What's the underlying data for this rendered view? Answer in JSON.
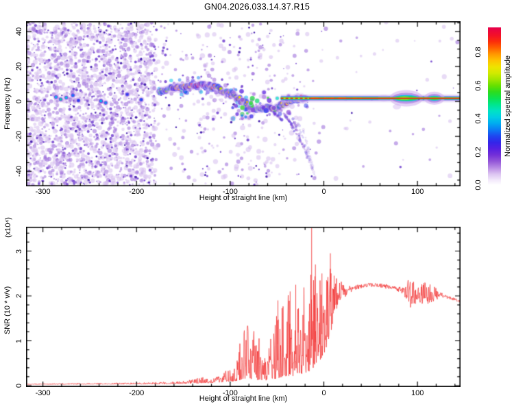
{
  "title": "GN04.2026.033.14.37.R15",
  "colors": {
    "background": "#ffffff",
    "frame": "#000000",
    "snr_curve": "#f23030",
    "colorbar_top": "#e6004b",
    "noise_purple": "#9055cc"
  },
  "chart_data": [
    {
      "type": "heatmap",
      "panel": "spectrogram",
      "xlabel": "Height of straight line (km)",
      "ylabel": "Frequency (Hz)",
      "xlim": [
        -318,
        146
      ],
      "ylim": [
        -48.6,
        45.9
      ],
      "xticks": [
        -300,
        -200,
        -100,
        0,
        100
      ],
      "xminor": 20,
      "yticks": [
        -40,
        -20,
        0,
        20,
        40
      ],
      "yminor": 5,
      "colorbar": {
        "label": "Normalized spectral amplitude",
        "tick_labels": [
          "0.0",
          "0.2",
          "0.4",
          "0.6",
          "0.8"
        ],
        "tick_values": [
          0,
          0.2,
          0.4,
          0.6,
          0.8
        ],
        "vmax": 0.95,
        "stops": [
          [
            0.0,
            "#ffffff"
          ],
          [
            0.03,
            "#f3eafb"
          ],
          [
            0.07,
            "#dcc3f1"
          ],
          [
            0.11,
            "#b88ae4"
          ],
          [
            0.15,
            "#9356d8"
          ],
          [
            0.19,
            "#7430d8"
          ],
          [
            0.23,
            "#5520e2"
          ],
          [
            0.27,
            "#3325e9"
          ],
          [
            0.31,
            "#1e46f0"
          ],
          [
            0.35,
            "#0b7bf4"
          ],
          [
            0.39,
            "#00abf0"
          ],
          [
            0.43,
            "#00cde4"
          ],
          [
            0.47,
            "#00e2c4"
          ],
          [
            0.51,
            "#00e68d"
          ],
          [
            0.55,
            "#0ce24f"
          ],
          [
            0.59,
            "#2cdc1e"
          ],
          [
            0.63,
            "#66e000"
          ],
          [
            0.67,
            "#a2e600"
          ],
          [
            0.71,
            "#d2ea00"
          ],
          [
            0.75,
            "#eee300"
          ],
          [
            0.79,
            "#fec300"
          ],
          [
            0.83,
            "#ff9800"
          ],
          [
            0.87,
            "#ff6000"
          ],
          [
            0.91,
            "#fb2d0a"
          ],
          [
            0.95,
            "#f31028"
          ],
          [
            1.0,
            "#e6004b"
          ]
        ]
      },
      "noise_density_regions": [
        {
          "until_km": -180,
          "density": 0.95
        },
        {
          "until_km": -140,
          "density": 0.14
        },
        {
          "until_km": -100,
          "density": 0.18
        },
        {
          "until_km": -55,
          "density": 0.2
        },
        {
          "until_km": -25,
          "density": 0.12
        },
        {
          "until_km": 5,
          "density": 0.05
        },
        {
          "until_km": 146,
          "density": 0.012
        }
      ],
      "noise_blobs": [
        [
          -286,
          2.5,
          0.42
        ],
        [
          -281,
          1.2,
          0.5
        ],
        [
          -275,
          2.2,
          0.45
        ],
        [
          -268,
          3.5,
          0.35
        ],
        [
          -262,
          0.5,
          0.3
        ],
        [
          -238,
          0.2,
          0.42
        ],
        [
          -233,
          -0.8,
          0.38
        ],
        [
          -210,
          4.0,
          0.3
        ],
        [
          -195,
          1.0,
          0.32
        ],
        [
          -152,
          6.2,
          0.5
        ],
        [
          -148,
          5.4,
          0.45
        ]
      ],
      "ridge": [
        [
          -176,
          5.5,
          0.5
        ],
        [
          -170,
          6.5,
          0.62
        ],
        [
          -165,
          7.0,
          0.68
        ],
        [
          -160,
          7.5,
          0.75
        ],
        [
          -155,
          8.0,
          0.8
        ],
        [
          -150,
          8.5,
          0.88
        ],
        [
          -145,
          9.0,
          0.92
        ],
        [
          -140,
          9.3,
          0.95
        ],
        [
          -135,
          9.4,
          0.97
        ],
        [
          -130,
          9.2,
          1.0
        ],
        [
          -126,
          9.0,
          0.97
        ],
        [
          -122,
          8.6,
          0.93
        ],
        [
          -118,
          8.2,
          0.9
        ],
        [
          -114,
          7.6,
          0.8
        ],
        [
          -110,
          6.5,
          0.72
        ],
        [
          -106,
          5.2,
          0.78
        ],
        [
          -102,
          4.2,
          0.8
        ],
        [
          -98,
          3.4,
          0.72
        ],
        [
          -94,
          2.4,
          0.65
        ],
        [
          -90,
          1.2,
          0.68
        ],
        [
          -86,
          0.0,
          0.72
        ],
        [
          -82,
          -1.4,
          0.75
        ],
        [
          -78,
          -2.6,
          0.7
        ],
        [
          -74,
          -3.8,
          0.65
        ],
        [
          -70,
          -4.8,
          0.6
        ],
        [
          -66,
          -4.2,
          0.63
        ],
        [
          -62,
          -3.4,
          0.68
        ],
        [
          -58,
          -3.8,
          0.72
        ],
        [
          -54,
          -4.4,
          0.65
        ],
        [
          -50,
          -3.6,
          0.6
        ],
        [
          -46,
          -2.4,
          0.66
        ],
        [
          -42,
          -1.2,
          0.72
        ],
        [
          -38,
          -0.2,
          0.78
        ],
        [
          -34,
          0.8,
          0.82
        ],
        [
          -30,
          1.4,
          0.8
        ],
        [
          -26,
          1.8,
          0.85
        ],
        [
          -22,
          2.0,
          0.88
        ],
        [
          -18,
          2.0,
          0.9
        ]
      ],
      "carrier_line": {
        "freq": 1.8,
        "dash_from_km": -46,
        "solid_from_km": -16,
        "end_km": 146
      },
      "bulges": [
        {
          "center_km": 88,
          "half_km": 15,
          "size": 1.0
        },
        {
          "center_km": 118,
          "half_km": 8,
          "size": 0.8
        }
      ],
      "streaks": [
        [
          -47,
          -4,
          -29,
          -17,
          0.55
        ],
        [
          -41,
          -7,
          -23,
          -25,
          0.5
        ],
        [
          -33,
          -10,
          -17,
          -33,
          0.42
        ],
        [
          -27,
          -13,
          -12,
          -40,
          0.3
        ],
        [
          -54,
          -6,
          -44,
          -11,
          0.4
        ],
        [
          -22,
          -16,
          -9,
          -44,
          0.22
        ]
      ]
    },
    {
      "type": "line",
      "panel": "snr",
      "xlabel": "Height of straight line (km)",
      "ylabel": "SNR (10 * v/v)",
      "scale_label": "(x10⁴)",
      "xlim": [
        -318,
        146
      ],
      "ylim": [
        0,
        3.57
      ],
      "xticks": [
        -300,
        -200,
        -100,
        0,
        100
      ],
      "xminor": 20,
      "yticks": [
        0,
        1,
        2,
        3
      ],
      "yminor": 0.2,
      "series": [
        {
          "name": "SNR",
          "color": "#f23030",
          "envelope": [
            [
              -318,
              0.025,
              0.02
            ],
            [
              -240,
              0.03,
              0.03
            ],
            [
              -180,
              0.035,
              0.04
            ],
            [
              -150,
              0.045,
              0.06
            ],
            [
              -138,
              0.05,
              0.1
            ],
            [
              -128,
              0.06,
              0.14
            ],
            [
              -120,
              0.06,
              0.1
            ],
            [
              -114,
              0.07,
              0.18
            ],
            [
              -108,
              0.08,
              0.24
            ],
            [
              -102,
              0.09,
              0.28
            ],
            [
              -96,
              0.1,
              0.38
            ],
            [
              -90,
              0.12,
              0.8
            ],
            [
              -84,
              0.15,
              1.15
            ],
            [
              -78,
              0.15,
              1.25
            ],
            [
              -72,
              0.13,
              1.15
            ],
            [
              -66,
              0.11,
              0.7
            ],
            [
              -61,
              0.12,
              0.42
            ],
            [
              -57,
              0.15,
              0.9
            ],
            [
              -52,
              0.15,
              1.4
            ],
            [
              -47,
              0.18,
              1.7
            ],
            [
              -42,
              0.2,
              1.85
            ],
            [
              -36,
              0.22,
              1.9
            ],
            [
              -30,
              0.2,
              2.0
            ],
            [
              -24,
              0.25,
              2.05
            ],
            [
              -18,
              0.3,
              2.1
            ],
            [
              -12,
              0.35,
              2.2
            ],
            [
              -6,
              0.5,
              2.15
            ],
            [
              0,
              0.7,
              2.0
            ],
            [
              5,
              1.0,
              1.8
            ],
            [
              10,
              1.4,
              1.2
            ],
            [
              15,
              1.8,
              0.6
            ],
            [
              20,
              2.0,
              0.3
            ],
            [
              25,
              2.12,
              0.14
            ],
            [
              32,
              2.18,
              0.09
            ],
            [
              45,
              2.24,
              0.07
            ],
            [
              60,
              2.23,
              0.07
            ],
            [
              75,
              2.18,
              0.08
            ],
            [
              85,
              2.12,
              0.12
            ],
            [
              90,
              2.05,
              0.45
            ],
            [
              95,
              2.02,
              0.5
            ],
            [
              100,
              2.08,
              0.35
            ],
            [
              108,
              2.02,
              0.45
            ],
            [
              115,
              2.05,
              0.35
            ],
            [
              122,
              2.02,
              0.15
            ],
            [
              128,
              2.0,
              0.07
            ],
            [
              135,
              1.95,
              0.05
            ],
            [
              146,
              1.88,
              0.05
            ]
          ],
          "peaks": [
            [
              -13,
              3.55
            ],
            [
              -9,
              2.7
            ],
            [
              -2,
              2.5
            ],
            [
              3,
              2.35
            ],
            [
              7,
              2.95
            ],
            [
              11,
              2.45
            ],
            [
              -30,
              2.25
            ],
            [
              -36,
              2.1
            ],
            [
              -49,
              1.9
            ]
          ]
        }
      ]
    }
  ]
}
